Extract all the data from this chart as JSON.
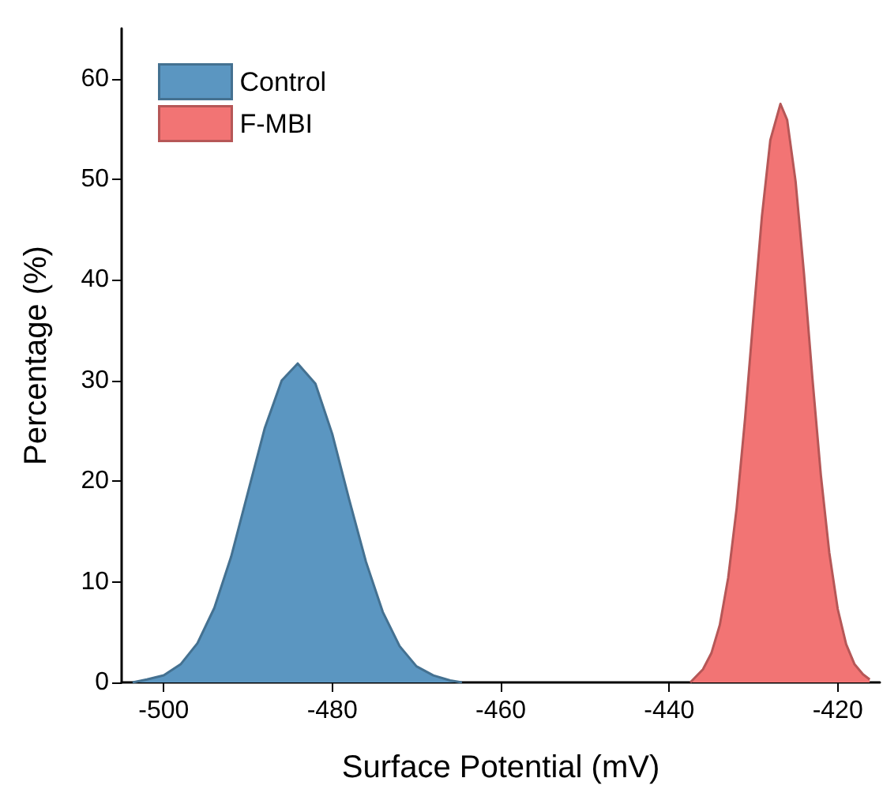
{
  "chart_data": {
    "type": "area",
    "xlabel": "Surface Potential (mV)",
    "ylabel": "Percentage (%)",
    "xlim": [
      -505,
      -415
    ],
    "xticks": [
      -500,
      -480,
      -460,
      -440,
      -420
    ],
    "ylim": [
      0,
      65
    ],
    "yticks": [
      0,
      10,
      20,
      30,
      40,
      50,
      60
    ],
    "grid": false,
    "legend": "top left",
    "series": [
      {
        "name": "Control",
        "color": "#5b96c1",
        "x": [
          -503.7,
          -502,
          -500,
          -498,
          -496,
          -494,
          -492,
          -490,
          -488,
          -486,
          -484.1,
          -482,
          -480,
          -478,
          -476,
          -474,
          -472,
          -470,
          -468,
          -466,
          -464.6
        ],
        "values": [
          0,
          0.3,
          0.7,
          1.8,
          3.9,
          7.4,
          12.5,
          18.9,
          25.3,
          30,
          31.7,
          29.7,
          24.7,
          18.2,
          12,
          7,
          3.6,
          1.6,
          0.7,
          0.2,
          0
        ]
      },
      {
        "name": "F-MBI",
        "color": "#f27474",
        "x": [
          -437.5,
          -436,
          -435,
          -434,
          -433,
          -432,
          -431,
          -430,
          -429,
          -428,
          -426.8,
          -426,
          -425,
          -424,
          -423,
          -422,
          -421,
          -420,
          -419,
          -418,
          -417,
          -416.2
        ],
        "values": [
          0,
          1.3,
          2.9,
          5.7,
          10.4,
          17.3,
          26.2,
          36.4,
          46.3,
          53.9,
          57.5,
          55.9,
          49.8,
          40.6,
          30.2,
          20.6,
          12.9,
          7.3,
          3.8,
          1.8,
          0.8,
          0.3
        ]
      }
    ]
  }
}
